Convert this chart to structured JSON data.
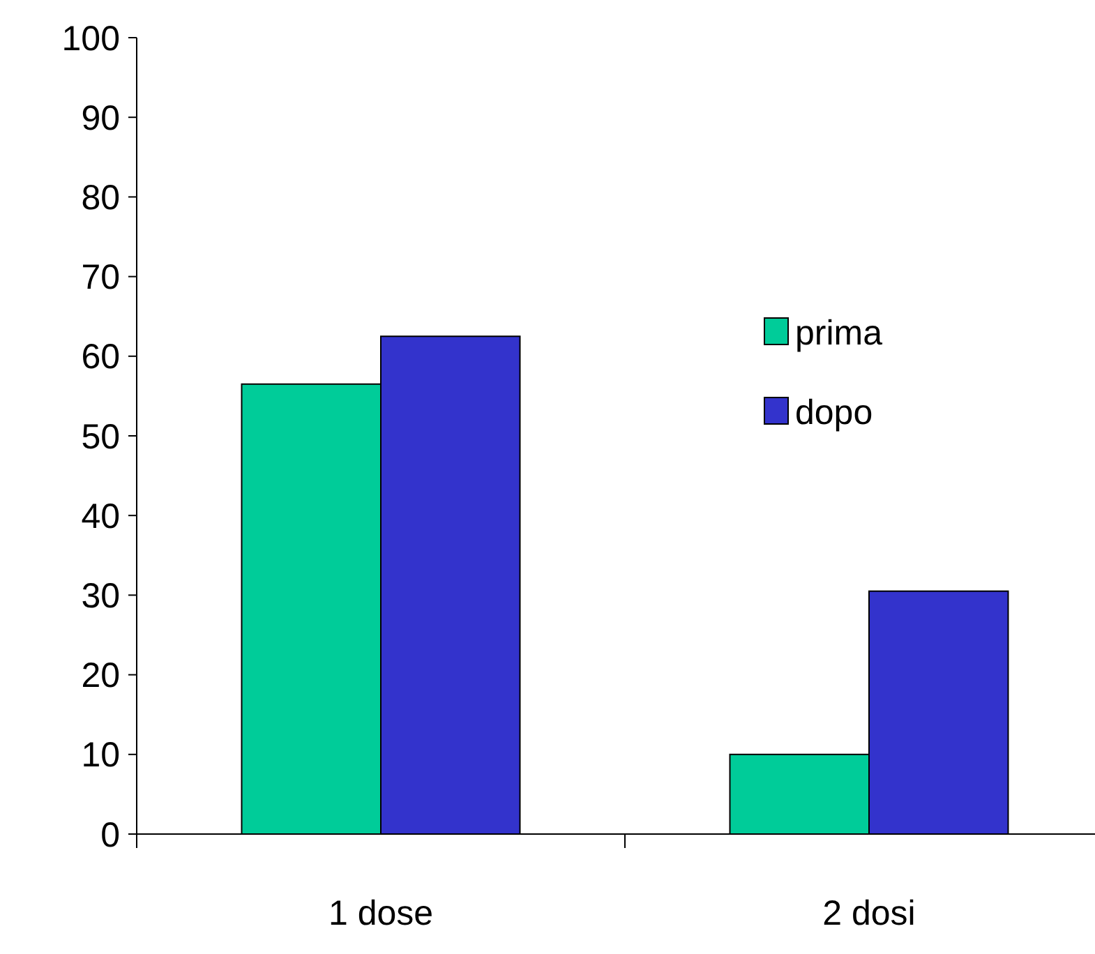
{
  "chart_data": {
    "type": "bar",
    "categories": [
      "1 dose",
      "2 dosi"
    ],
    "series": [
      {
        "name": "prima",
        "color": "#00cc99",
        "values": [
          56.5,
          10
        ]
      },
      {
        "name": "dopo",
        "color": "#3333cc",
        "values": [
          62.5,
          30.5
        ]
      }
    ],
    "ylim": [
      0,
      100
    ],
    "yticks": [
      0,
      10,
      20,
      30,
      40,
      50,
      60,
      70,
      80,
      90,
      100
    ],
    "grid": false,
    "legend": "right"
  }
}
